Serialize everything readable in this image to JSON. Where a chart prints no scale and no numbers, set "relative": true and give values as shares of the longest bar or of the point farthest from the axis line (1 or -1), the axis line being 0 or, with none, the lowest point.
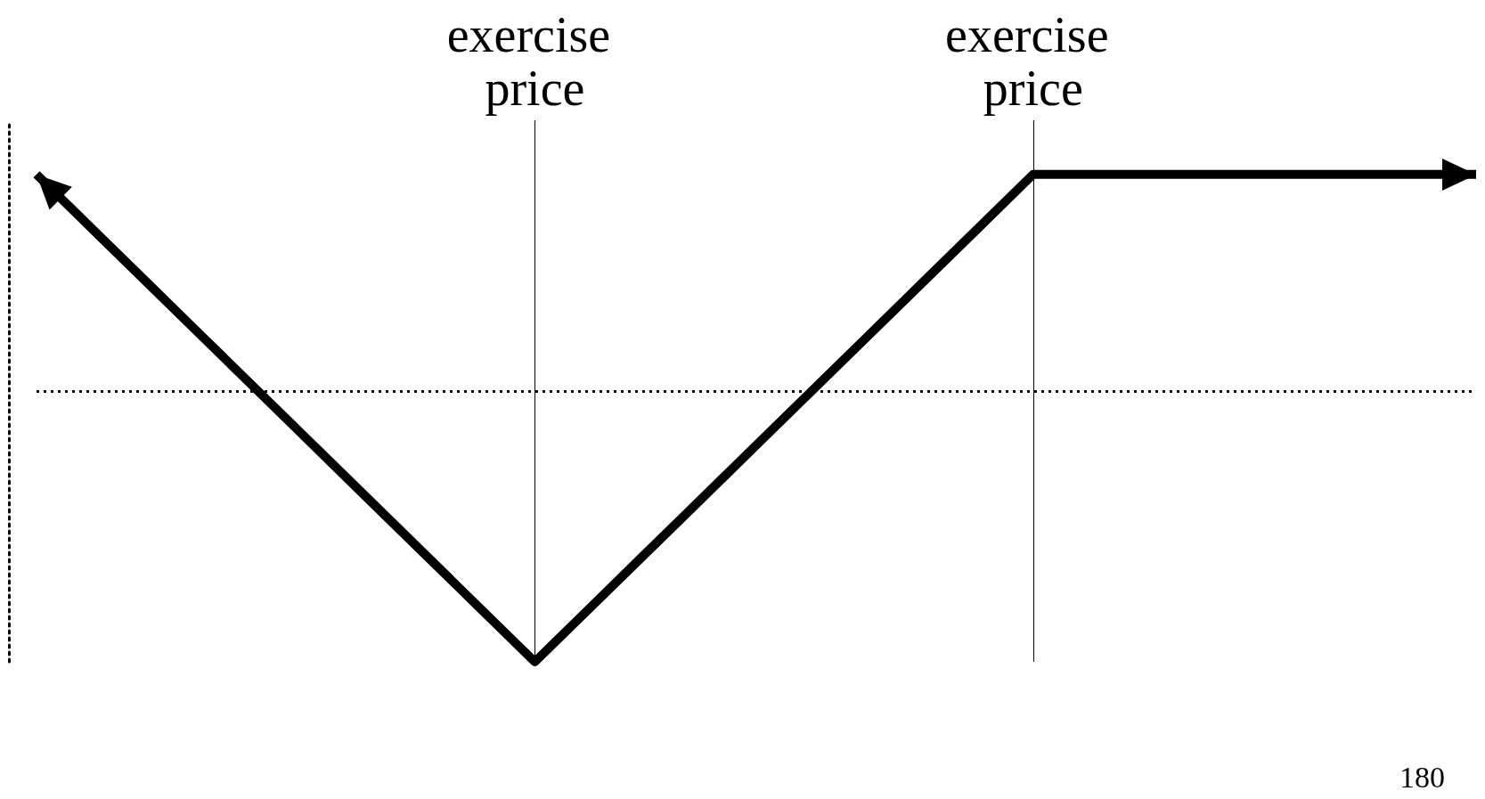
{
  "chart_data": {
    "type": "line",
    "relative": true,
    "categories": [
      null,
      null,
      null,
      null,
      null,
      null,
      null,
      null,
      null,
      "exercise price",
      null,
      null,
      null,
      null,
      null,
      null,
      null,
      null,
      "exercise price",
      null,
      null,
      null,
      null,
      null,
      null,
      null,
      null
    ],
    "values": [
      0.8,
      0.6,
      0.4,
      0.2,
      0,
      -0.2,
      -0.4,
      -0.6,
      -0.8,
      -1,
      -0.8,
      -0.6,
      -0.4,
      -0.2,
      0,
      0.2,
      0.4,
      0.6,
      0.8,
      0.8,
      0.8,
      0.8,
      0.8,
      0.8,
      0.8,
      0.8,
      0.8
    ],
    "color": "#000000",
    "grid": "x",
    "ref_lines": [
      {
        "axis": "y",
        "value": 0,
        "color": "#000000",
        "line_style": "dotted"
      }
    ],
    "annotations": [
      "180"
    ]
  }
}
